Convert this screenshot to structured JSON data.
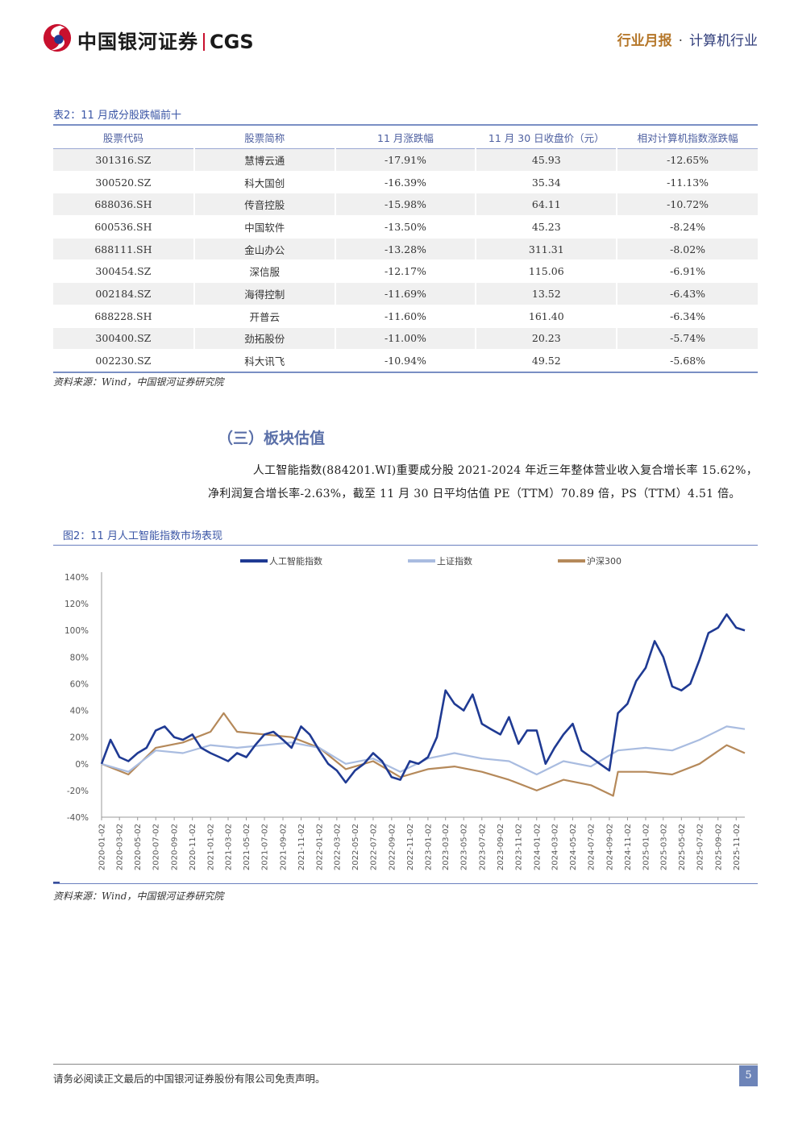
{
  "header": {
    "logo_text": "中国银河证券",
    "logo_abbr": "CGS",
    "report_type": "行业月报",
    "separator": "·",
    "industry": "计算机行业"
  },
  "table": {
    "caption": "表2：11 月成分股跌幅前十",
    "columns": [
      "股票代码",
      "股票简称",
      "11 月涨跌幅",
      "11 月 30 日收盘价（元）",
      "相对计算机指数涨跌幅"
    ],
    "rows": [
      [
        "301316.SZ",
        "慧博云通",
        "-17.91%",
        "45.93",
        "-12.65%"
      ],
      [
        "300520.SZ",
        "科大国创",
        "-16.39%",
        "35.34",
        "-11.13%"
      ],
      [
        "688036.SH",
        "传音控股",
        "-15.98%",
        "64.11",
        "-10.72%"
      ],
      [
        "600536.SH",
        "中国软件",
        "-13.50%",
        "45.23",
        "-8.24%"
      ],
      [
        "688111.SH",
        "金山办公",
        "-13.28%",
        "311.31",
        "-8.02%"
      ],
      [
        "300454.SZ",
        "深信服",
        "-12.17%",
        "115.06",
        "-6.91%"
      ],
      [
        "002184.SZ",
        "海得控制",
        "-11.69%",
        "13.52",
        "-6.43%"
      ],
      [
        "688228.SH",
        "开普云",
        "-11.60%",
        "161.40",
        "-6.34%"
      ],
      [
        "300400.SZ",
        "劲拓股份",
        "-11.00%",
        "20.23",
        "-5.74%"
      ],
      [
        "002230.SZ",
        "科大讯飞",
        "-10.94%",
        "49.52",
        "-5.68%"
      ]
    ],
    "source": "资料来源：Wind，中国银河证券研究院"
  },
  "section": {
    "title": "（三）板块估值",
    "line1": "人工智能指数(884201.WI)重要成分股 2021-2024 年近三年整体营业收入复合增长率 15.62%，",
    "line2": "净利润复合增长率-2.63%，截至 11 月 30 日平均估值 PE（TTM）70.89 倍，PS（TTM）4.51 倍。"
  },
  "figure": {
    "caption": "图2：11 月人工智能指数市场表现",
    "source": "资料来源：Wind，中国银河证券研究院"
  },
  "chart_data": {
    "type": "line",
    "ylim": [
      -40,
      140
    ],
    "yticks": [
      "140%",
      "120%",
      "100%",
      "80%",
      "60%",
      "40%",
      "20%",
      "0%",
      "-20%",
      "-40%"
    ],
    "ytick_values": [
      140,
      120,
      100,
      80,
      60,
      40,
      20,
      0,
      -20,
      -40
    ],
    "xticks": [
      "2020-01-02",
      "2020-03-02",
      "2020-05-02",
      "2020-07-02",
      "2020-09-02",
      "2020-11-02",
      "2021-01-02",
      "2021-03-02",
      "2021-05-02",
      "2021-07-02",
      "2021-09-02",
      "2021-11-02",
      "2022-01-02",
      "2022-03-02",
      "2022-05-02",
      "2022-07-02",
      "2022-09-02",
      "2022-11-02",
      "2023-01-02",
      "2023-03-02",
      "2023-05-02",
      "2023-07-02",
      "2023-09-02",
      "2023-11-02",
      "2024-01-02",
      "2024-03-02",
      "2024-05-02",
      "2024-07-02",
      "2024-09-02",
      "2024-11-02",
      "2025-01-02",
      "2025-03-02",
      "2025-05-02",
      "2025-07-02",
      "2025-09-02",
      "2025-11-02"
    ],
    "legend_position": "top",
    "series": [
      {
        "name": "人工智能指数",
        "color": "#1f3a93",
        "x": [
          "2020-01-02",
          "2020-02-01",
          "2020-03-02",
          "2020-04-01",
          "2020-05-02",
          "2020-06-01",
          "2020-07-02",
          "2020-08-01",
          "2020-09-02",
          "2020-10-01",
          "2020-11-02",
          "2020-12-01",
          "2021-01-02",
          "2021-02-01",
          "2021-03-02",
          "2021-04-01",
          "2021-05-02",
          "2021-06-01",
          "2021-07-02",
          "2021-08-01",
          "2021-09-02",
          "2021-10-01",
          "2021-11-02",
          "2021-12-01",
          "2022-01-02",
          "2022-02-01",
          "2022-03-02",
          "2022-04-01",
          "2022-05-02",
          "2022-06-01",
          "2022-07-02",
          "2022-08-01",
          "2022-09-02",
          "2022-10-01",
          "2022-11-02",
          "2022-12-01",
          "2023-01-02",
          "2023-02-01",
          "2023-03-02",
          "2023-04-01",
          "2023-05-02",
          "2023-06-01",
          "2023-07-02",
          "2023-08-01",
          "2023-09-02",
          "2023-10-01",
          "2023-11-02",
          "2023-12-01",
          "2024-01-02",
          "2024-02-01",
          "2024-03-02",
          "2024-04-01",
          "2024-05-02",
          "2024-06-01",
          "2024-07-02",
          "2024-08-01",
          "2024-09-02",
          "2024-10-01",
          "2024-11-02",
          "2024-12-01",
          "2025-01-02",
          "2025-02-01",
          "2025-03-02",
          "2025-04-01",
          "2025-05-02",
          "2025-06-01",
          "2025-07-02",
          "2025-08-01",
          "2025-09-02",
          "2025-10-01",
          "2025-11-02",
          "2025-12-01"
        ],
        "values": [
          0,
          18,
          5,
          2,
          8,
          12,
          25,
          28,
          20,
          18,
          22,
          12,
          8,
          5,
          2,
          8,
          5,
          14,
          22,
          24,
          18,
          12,
          28,
          22,
          10,
          0,
          -5,
          -14,
          -5,
          0,
          8,
          2,
          -10,
          -12,
          2,
          0,
          5,
          20,
          55,
          45,
          40,
          52,
          30,
          26,
          22,
          35,
          15,
          25,
          25,
          0,
          12,
          22,
          30,
          10,
          5,
          0,
          -5,
          38,
          45,
          62,
          72,
          92,
          80,
          58,
          55,
          60,
          78,
          98,
          102,
          112,
          102,
          100
        ]
      },
      {
        "name": "上证指数",
        "color": "#a9bce0",
        "x": [
          "2020-01-02",
          "2020-04-01",
          "2020-07-02",
          "2020-10-01",
          "2021-01-02",
          "2021-04-01",
          "2021-07-02",
          "2021-10-01",
          "2022-01-02",
          "2022-04-01",
          "2022-07-02",
          "2022-10-01",
          "2023-01-02",
          "2023-04-01",
          "2023-07-02",
          "2023-10-01",
          "2024-01-02",
          "2024-04-01",
          "2024-07-02",
          "2024-10-01",
          "2025-01-02",
          "2025-04-01",
          "2025-07-02",
          "2025-10-01",
          "2025-12-01"
        ],
        "values": [
          0,
          -6,
          10,
          8,
          14,
          12,
          14,
          16,
          12,
          0,
          4,
          -6,
          4,
          8,
          4,
          2,
          -8,
          2,
          -2,
          10,
          12,
          10,
          18,
          28,
          26
        ]
      },
      {
        "name": "沪深300",
        "color": "#b5895a",
        "x": [
          "2020-01-02",
          "2020-04-01",
          "2020-07-02",
          "2020-10-01",
          "2021-01-02",
          "2021-02-15",
          "2021-04-01",
          "2021-07-02",
          "2021-10-01",
          "2022-01-02",
          "2022-04-01",
          "2022-07-02",
          "2022-10-01",
          "2023-01-02",
          "2023-04-01",
          "2023-07-02",
          "2023-10-01",
          "2024-01-02",
          "2024-04-01",
          "2024-07-02",
          "2024-09-15",
          "2024-10-01",
          "2025-01-02",
          "2025-04-01",
          "2025-07-02",
          "2025-10-01",
          "2025-12-01"
        ],
        "values": [
          0,
          -8,
          12,
          16,
          24,
          38,
          24,
          22,
          20,
          12,
          -4,
          2,
          -10,
          -4,
          -2,
          -6,
          -12,
          -20,
          -12,
          -16,
          -24,
          -6,
          -6,
          -8,
          0,
          14,
          8
        ]
      }
    ]
  },
  "footer": {
    "disclaimer": "请务必阅读正文最后的中国银河证券股份有限公司免责声明。",
    "page_number": "5"
  }
}
